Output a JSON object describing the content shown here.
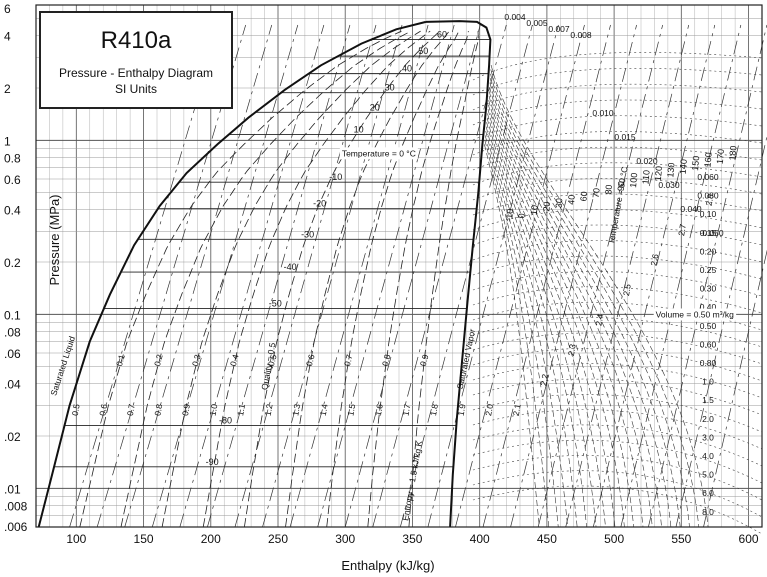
{
  "chart_data": {
    "type": "line",
    "title": "R410a",
    "subtitle": "Pressure - Enthalpy Diagram",
    "units_note": "SI Units",
    "xlabel": "Enthalpy (kJ/kg)",
    "ylabel": "Pressure (MPa)",
    "xlim": [
      70,
      610
    ],
    "ylim": [
      0.006,
      6
    ],
    "yscale": "log",
    "grid": true,
    "x_ticks": [
      "100",
      "150",
      "200",
      "250",
      "300",
      "350",
      "400",
      "450",
      "500",
      "550",
      "600"
    ],
    "y_ticks": [
      {
        "v": 6,
        "label": "6"
      },
      {
        "v": 4,
        "label": "4"
      },
      {
        "v": 2,
        "label": "2"
      },
      {
        "v": 1,
        "label": "1"
      },
      {
        "v": 0.8,
        "label": "0.8"
      },
      {
        "v": 0.6,
        "label": "0.6"
      },
      {
        "v": 0.4,
        "label": "0.4"
      },
      {
        "v": 0.2,
        "label": "0.2"
      },
      {
        "v": 0.1,
        "label": "0.1"
      },
      {
        "v": 0.08,
        "label": ".08"
      },
      {
        "v": 0.06,
        "label": ".06"
      },
      {
        "v": 0.04,
        "label": ".04"
      },
      {
        "v": 0.02,
        "label": ".02"
      },
      {
        "v": 0.01,
        "label": ".01"
      },
      {
        "v": 0.008,
        "label": ".008"
      },
      {
        "v": 0.006,
        "label": ".006"
      }
    ],
    "series": [
      {
        "name": "Saturated Liquid",
        "points": [
          [
            72,
            0.006
          ],
          [
            82,
            0.012
          ],
          [
            95,
            0.03
          ],
          [
            110,
            0.07
          ],
          [
            125,
            0.13
          ],
          [
            143,
            0.25
          ],
          [
            162,
            0.42
          ],
          [
            182,
            0.65
          ],
          [
            205,
            0.95
          ],
          [
            228,
            1.35
          ],
          [
            255,
            1.95
          ],
          [
            282,
            2.7
          ],
          [
            312,
            3.6
          ],
          [
            338,
            4.35
          ],
          [
            360,
            4.8
          ]
        ]
      },
      {
        "name": "Saturated Vapor",
        "points": [
          [
            360,
            4.8
          ],
          [
            385,
            4.85
          ],
          [
            398,
            4.8
          ],
          [
            405,
            4.45
          ],
          [
            408,
            3.8
          ],
          [
            407,
            2.7
          ],
          [
            405,
            1.6
          ],
          [
            402,
            0.95
          ],
          [
            399,
            0.5
          ],
          [
            395,
            0.25
          ],
          [
            391,
            0.12
          ],
          [
            387,
            0.055
          ],
          [
            383,
            0.025
          ],
          [
            380,
            0.012
          ],
          [
            378,
            0.006
          ]
        ]
      }
    ],
    "quality_lines": [
      "0.1",
      "0.2",
      "0.3",
      "0.4",
      "0.5",
      "0.6",
      "0.7",
      "0.8",
      "0.9"
    ],
    "isotherm_labels_dome": [
      {
        "t": "60",
        "h": 372,
        "p": 3.8
      },
      {
        "t": "50",
        "h": 358,
        "p": 3.05
      },
      {
        "t": "40",
        "h": 346,
        "p": 2.42
      },
      {
        "t": "30",
        "h": 333,
        "p": 1.88
      },
      {
        "t": "20",
        "h": 322,
        "p": 1.45
      },
      {
        "t": "10",
        "h": 310,
        "p": 1.08
      },
      {
        "t": "-10",
        "h": 293,
        "p": 0.575
      },
      {
        "t": "-20",
        "h": 281,
        "p": 0.405
      },
      {
        "t": "-30",
        "h": 272,
        "p": 0.27
      },
      {
        "t": "-40",
        "h": 259,
        "p": 0.175
      },
      {
        "t": "-50",
        "h": 248,
        "p": 0.108
      },
      {
        "t": "-80",
        "h": 211,
        "p": 0.023
      },
      {
        "t": "-90",
        "h": 201,
        "p": 0.0133
      }
    ],
    "isotherm_labels_vapor": [
      "-10",
      "0",
      "10",
      "20",
      "30",
      "40",
      "60",
      "70",
      "80",
      "90",
      "100",
      "110",
      "120",
      "130",
      "140",
      "150",
      "160",
      "170",
      "180"
    ],
    "entropy_labels": [
      "0.5",
      "0.6",
      "0.7",
      "0.8",
      "0.9",
      "1.0",
      "1.1",
      "1.2",
      "1.3",
      "1.4",
      "1.5",
      "1.6",
      "1.7",
      "1.8",
      "1.9",
      "2.0",
      "2.1",
      "2.2",
      "2.3",
      "2.4",
      "2.5",
      "2.6",
      "2.7",
      "2.8"
    ],
    "volume_labels": [
      "0.004",
      "0.005",
      "0.007",
      "0.008",
      "0.010",
      "0.015",
      "0.020",
      "0.030",
      "0.040",
      "0.050",
      "0.060",
      "0.080",
      "0.10",
      "0.15",
      "0.20",
      "0.25",
      "0.30",
      "0.40",
      "0.50",
      "0.60",
      "0.80",
      "1.0",
      "1.5",
      "2.0",
      "3.0",
      "4.0",
      "5.0",
      "6.0",
      "8.0"
    ],
    "annotations": [
      {
        "text": "Temperature = 0 °C",
        "h": 325,
        "p": 0.81
      },
      {
        "text": "Temperature = 50 °C",
        "h": 505,
        "p": 0.42,
        "rotate": -80
      },
      {
        "text": "Quality = 0.5",
        "h": 245,
        "p": 0.05,
        "rotate": -80
      },
      {
        "text": "Entropy = 1.5 kJ/kg K",
        "h": 352,
        "p": 0.011,
        "rotate": -80
      },
      {
        "text": "Volume = 0.50 m³/kg",
        "h": 560,
        "p": 0.096
      },
      {
        "text": "Saturated Liquid",
        "h": 92,
        "p": 0.05,
        "rotate": -72
      },
      {
        "text": "Saturated Vapor",
        "h": 392,
        "p": 0.055,
        "rotate": -78
      }
    ]
  }
}
